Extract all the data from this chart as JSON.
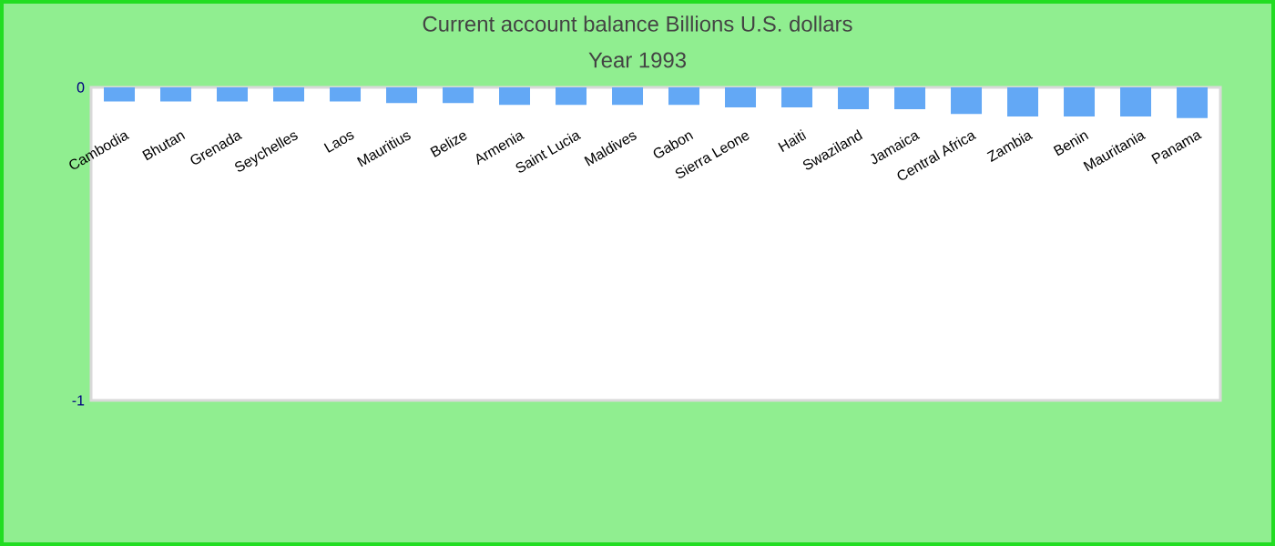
{
  "chart_data": {
    "type": "bar",
    "title": "Current account balance Billions U.S. dollars",
    "subtitle": "Year 1993",
    "categories": [
      "Cambodia",
      "Bhutan",
      "Grenada",
      "Seychelles",
      "Laos",
      "Mauritius",
      "Belize",
      "Armenia",
      "Saint Lucia",
      "Maldives",
      "Gabon",
      "Sierra Leone",
      "Haiti",
      "Swaziland",
      "Jamaica",
      "Central Africa",
      "Zambia",
      "Benin",
      "Mauritania",
      "Panama"
    ],
    "values": [
      -0.045,
      -0.045,
      -0.045,
      -0.045,
      -0.045,
      -0.05,
      -0.05,
      -0.056,
      -0.056,
      -0.056,
      -0.056,
      -0.064,
      -0.064,
      -0.07,
      -0.07,
      -0.085,
      -0.093,
      -0.093,
      -0.093,
      -0.098
    ],
    "color": "#63a8f5",
    "ylim": [
      -1,
      0
    ],
    "yticks": [
      -1,
      0
    ]
  }
}
